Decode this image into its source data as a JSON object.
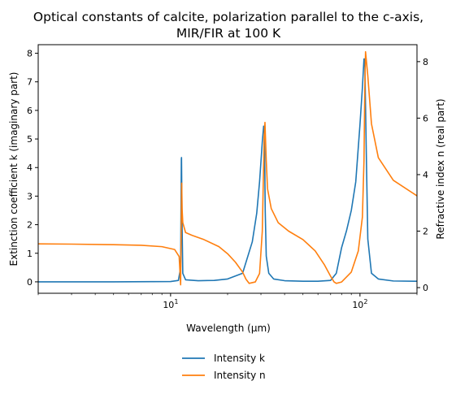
{
  "chart_data": {
    "type": "line",
    "title": "Optical constants of calcite, polarization parallel to the c-axis,",
    "subtitle": "MIR/FIR at 100 K",
    "xlabel": "Wavelength (μm)",
    "ylabel_left": "Extinction coefficient k (imaginary part)",
    "ylabel_right": "Refractive index n (real part)",
    "x_scale": "log",
    "xlim": [
      2,
      200
    ],
    "ylim_left": [
      -0.4,
      8.3
    ],
    "ylim_right": [
      -0.2,
      8.6
    ],
    "x_ticks": [
      {
        "value": 10,
        "base": "10",
        "exp": "1"
      },
      {
        "value": 100,
        "base": "10",
        "exp": "2"
      }
    ],
    "yticks_left": [
      "0",
      "1",
      "2",
      "3",
      "4",
      "5",
      "6",
      "7",
      "8"
    ],
    "yticks_right": [
      "0",
      "2",
      "4",
      "6",
      "8"
    ],
    "grid": false,
    "legend_position": "bottom-center",
    "series": [
      {
        "name": "Intensity k",
        "axis": "left",
        "color": "#1f77b4",
        "x": [
          2,
          5,
          10,
          11.0,
          11.3,
          11.4,
          11.42,
          11.5,
          11.6,
          12,
          14,
          17,
          20,
          24,
          27,
          28.5,
          29.5,
          30.5,
          31.0,
          31.3,
          31.6,
          32,
          33,
          35,
          40,
          50,
          60,
          70,
          75,
          80,
          85,
          90,
          95,
          100,
          103,
          105,
          106,
          108,
          110,
          115,
          125,
          150,
          200
        ],
        "y": [
          0,
          0,
          0.01,
          0.05,
          0.5,
          4.3,
          4.35,
          2.0,
          0.3,
          0.07,
          0.04,
          0.05,
          0.1,
          0.3,
          1.4,
          2.4,
          3.5,
          4.9,
          5.45,
          5.3,
          2.5,
          0.9,
          0.3,
          0.1,
          0.04,
          0.02,
          0.02,
          0.05,
          0.3,
          1.2,
          1.8,
          2.5,
          3.5,
          5.5,
          6.8,
          7.8,
          7.8,
          4.5,
          1.5,
          0.3,
          0.1,
          0.03,
          0.02
        ]
      },
      {
        "name": "Intensity n",
        "axis": "right",
        "color": "#ff7f0e",
        "x": [
          2,
          3,
          5,
          7,
          9,
          10.5,
          11.1,
          11.3,
          11.45,
          11.5,
          11.6,
          12,
          13,
          15,
          18,
          20,
          22,
          24,
          25,
          26,
          28,
          29.5,
          30.5,
          31.2,
          31.5,
          32,
          32.5,
          34,
          37,
          42,
          50,
          58,
          65,
          70,
          73,
          75,
          80,
          90,
          98,
          103,
          105,
          106,
          107,
          110,
          115,
          125,
          150,
          200
        ],
        "y": [
          1.55,
          1.54,
          1.52,
          1.5,
          1.45,
          1.35,
          1.1,
          0.1,
          3.7,
          2.8,
          2.3,
          1.95,
          1.85,
          1.7,
          1.45,
          1.2,
          0.9,
          0.55,
          0.3,
          0.15,
          0.2,
          0.5,
          2.0,
          5.3,
          5.85,
          4.5,
          3.5,
          2.8,
          2.3,
          2.0,
          1.7,
          1.3,
          0.8,
          0.4,
          0.2,
          0.15,
          0.2,
          0.55,
          1.3,
          2.5,
          4.5,
          7.0,
          8.35,
          7.5,
          5.8,
          4.6,
          3.8,
          3.25
        ]
      }
    ]
  }
}
